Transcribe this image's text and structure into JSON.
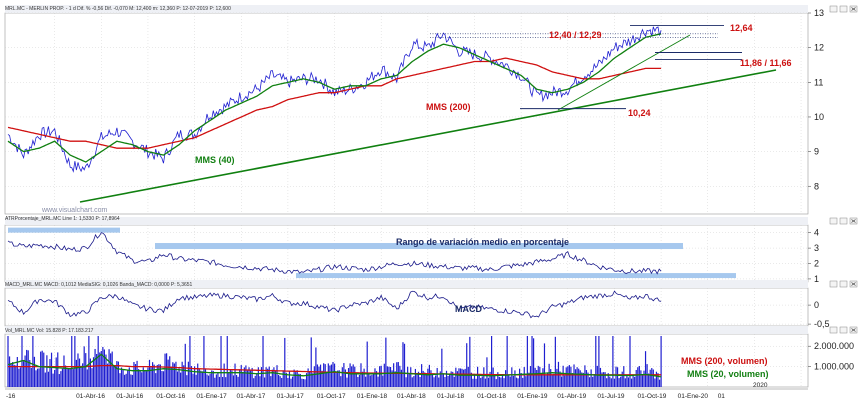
{
  "colors": {
    "price": "#1f1fd0",
    "sma200": "#d01010",
    "sma40": "#108010",
    "trendline": "#108010",
    "highlight": "#a6c8ee",
    "volume": "#1f1fd0",
    "grid": "#c8c8c8"
  },
  "chart_data": [
    {
      "type": "line",
      "title": "MRL.MC - MERLIN PROP. - 1 d Dif. % -0,56 Dif. -0,070 M: 12,400 m: 12,360 P: 12-07-2019 P: 12,600",
      "yticks": [
        "8",
        "9",
        "10",
        "11",
        "12",
        "13"
      ],
      "ylim": [
        7.2,
        13.0
      ],
      "grid": true,
      "x": [
        "2016-01",
        "2016-02",
        "2016-03",
        "2016-04",
        "2016-05",
        "2016-06",
        "2016-07",
        "2016-08",
        "2016-09",
        "2016-10",
        "2016-11",
        "2016-12",
        "2017-01",
        "2017-02",
        "2017-03",
        "2017-04",
        "2017-05",
        "2017-06",
        "2017-07",
        "2017-08",
        "2017-09",
        "2017-10",
        "2017-11",
        "2017-12",
        "2018-01",
        "2018-02",
        "2018-03",
        "2018-04",
        "2018-05",
        "2018-06",
        "2018-07",
        "2018-08",
        "2018-09",
        "2018-10",
        "2018-11",
        "2018-12",
        "2019-01",
        "2019-02",
        "2019-03",
        "2019-04",
        "2019-05",
        "2019-06",
        "2019-07"
      ],
      "series": [
        {
          "name": "price",
          "values": [
            9.5,
            8.9,
            9.5,
            9.6,
            8.6,
            8.5,
            9.4,
            9.6,
            9.3,
            9.0,
            8.8,
            9.5,
            9.5,
            10.1,
            10.3,
            10.6,
            10.8,
            11.2,
            11.0,
            11.1,
            11.1,
            10.7,
            10.8,
            11.0,
            11.4,
            11.1,
            12.1,
            12.0,
            12.4,
            11.9,
            11.8,
            11.7,
            11.5,
            11.2,
            10.6,
            10.7,
            10.8,
            11.2,
            11.5,
            12.0,
            12.2,
            12.5,
            12.5
          ]
        },
        {
          "name": "MMS (200)",
          "values": [
            9.7,
            9.6,
            9.5,
            9.4,
            9.3,
            9.3,
            9.2,
            9.1,
            9.1,
            9.1,
            9.2,
            9.3,
            9.4,
            9.6,
            9.8,
            10.0,
            10.2,
            10.3,
            10.5,
            10.6,
            10.7,
            10.7,
            10.8,
            10.9,
            10.9,
            11.1,
            11.2,
            11.3,
            11.4,
            11.5,
            11.6,
            11.6,
            11.7,
            11.6,
            11.5,
            11.3,
            11.2,
            11.1,
            11.1,
            11.2,
            11.3,
            11.4,
            11.4
          ]
        },
        {
          "name": "MMS (40)",
          "values": [
            9.3,
            9.0,
            9.1,
            9.3,
            8.9,
            8.7,
            9.0,
            9.3,
            9.2,
            9.0,
            8.9,
            9.2,
            9.6,
            9.9,
            10.2,
            10.4,
            10.6,
            10.9,
            11.0,
            11.1,
            11.0,
            10.8,
            10.9,
            10.9,
            11.1,
            11.2,
            11.6,
            11.9,
            12.1,
            12.0,
            11.8,
            11.6,
            11.4,
            11.2,
            10.8,
            10.7,
            10.8,
            11.0,
            11.3,
            11.7,
            12.0,
            12.3,
            12.4
          ]
        }
      ],
      "annotations": {
        "resistance_top": "12,64",
        "resistance_range": "12,40 / 12,29",
        "support_range": "11,86 / 11,66",
        "support_low": "10,24",
        "sma200_label": "MMS (200)",
        "sma40_label": "MMS (40)",
        "watermark": "www.visualchart.com"
      }
    },
    {
      "type": "line",
      "title": "ATRPorcentaje_MRL.MC Line 1: 1,5330 P: 17,8964",
      "yticks": [
        "1",
        "2",
        "3",
        "4"
      ],
      "ylim": [
        0.8,
        4.5
      ],
      "grid": true,
      "x": [
        "2016-01",
        "2016-02",
        "2016-03",
        "2016-04",
        "2016-05",
        "2016-06",
        "2016-07",
        "2016-08",
        "2016-09",
        "2016-10",
        "2016-11",
        "2016-12",
        "2017-01",
        "2017-02",
        "2017-03",
        "2017-04",
        "2017-05",
        "2017-06",
        "2017-07",
        "2017-08",
        "2017-09",
        "2017-10",
        "2017-11",
        "2017-12",
        "2018-01",
        "2018-02",
        "2018-03",
        "2018-04",
        "2018-05",
        "2018-06",
        "2018-07",
        "2018-08",
        "2018-09",
        "2018-10",
        "2018-11",
        "2018-12",
        "2019-01",
        "2019-02",
        "2019-03",
        "2019-04",
        "2019-05",
        "2019-06",
        "2019-07"
      ],
      "series": [
        {
          "name": "ATR %",
          "values": [
            3.3,
            3.1,
            3.2,
            3.1,
            2.9,
            3.0,
            4.1,
            2.8,
            2.2,
            2.1,
            2.6,
            2.3,
            2.2,
            2.1,
            1.9,
            1.8,
            1.7,
            1.6,
            1.5,
            1.4,
            1.6,
            1.8,
            1.7,
            1.6,
            1.8,
            2.0,
            2.0,
            1.9,
            1.8,
            1.7,
            1.7,
            1.6,
            1.8,
            1.9,
            2.1,
            2.3,
            2.6,
            2.2,
            1.8,
            1.6,
            1.5,
            1.5,
            1.5
          ]
        }
      ],
      "annotations": {
        "label": "Rango de variación medio en porcentaje"
      }
    },
    {
      "type": "line",
      "title": "MACD_MRL.MC MACD: 0,1012 MediaSIG: 0,1026 Banda_MACD: 0,0000 P: 5,3651",
      "yticks": [
        "0",
        "-0,5"
      ],
      "ylim": [
        -0.55,
        0.45
      ],
      "grid": true,
      "x": [
        "2016-01",
        "2016-02",
        "2016-03",
        "2016-04",
        "2016-05",
        "2016-06",
        "2016-07",
        "2016-08",
        "2016-09",
        "2016-10",
        "2016-11",
        "2016-12",
        "2017-01",
        "2017-02",
        "2017-03",
        "2017-04",
        "2017-05",
        "2017-06",
        "2017-07",
        "2017-08",
        "2017-09",
        "2017-10",
        "2017-11",
        "2017-12",
        "2018-01",
        "2018-02",
        "2018-03",
        "2018-04",
        "2018-05",
        "2018-06",
        "2018-07",
        "2018-08",
        "2018-09",
        "2018-10",
        "2018-11",
        "2018-12",
        "2019-01",
        "2019-02",
        "2019-03",
        "2019-04",
        "2019-05",
        "2019-06",
        "2019-07"
      ],
      "series": [
        {
          "name": "MACD",
          "values": [
            0.1,
            -0.2,
            0.15,
            0.1,
            -0.25,
            -0.2,
            0.2,
            0.25,
            0.0,
            -0.1,
            -0.15,
            0.2,
            0.2,
            0.25,
            0.25,
            0.2,
            0.15,
            0.25,
            0.05,
            0.05,
            -0.05,
            -0.15,
            0.0,
            0.05,
            0.2,
            -0.1,
            0.35,
            0.2,
            0.25,
            -0.1,
            -0.05,
            -0.1,
            -0.15,
            -0.2,
            -0.3,
            -0.05,
            0.05,
            0.2,
            0.25,
            0.3,
            0.15,
            0.25,
            0.1
          ]
        }
      ],
      "annotations": {
        "label": "MACD"
      }
    },
    {
      "type": "bar",
      "title": "Vol_MRL.MC Vol: 15.828 P: 17.183.217",
      "yticks": [
        "1.000.000",
        "2.000.000"
      ],
      "ylim": [
        0,
        2600000
      ],
      "grid": true,
      "x": [
        "2016-01",
        "2016-02",
        "2016-03",
        "2016-04",
        "2016-05",
        "2016-06",
        "2016-07",
        "2016-08",
        "2016-09",
        "2016-10",
        "2016-11",
        "2016-12",
        "2017-01",
        "2017-02",
        "2017-03",
        "2017-04",
        "2017-05",
        "2017-06",
        "2017-07",
        "2017-08",
        "2017-09",
        "2017-10",
        "2017-11",
        "2017-12",
        "2018-01",
        "2018-02",
        "2018-03",
        "2018-04",
        "2018-05",
        "2018-06",
        "2018-07",
        "2018-08",
        "2018-09",
        "2018-10",
        "2018-11",
        "2018-12",
        "2019-01",
        "2019-02",
        "2019-03",
        "2019-04",
        "2019-05",
        "2019-06",
        "2019-07"
      ],
      "series": [
        {
          "name": "volume",
          "values": [
            1500000,
            1900000,
            1400000,
            1300000,
            1200000,
            1400000,
            2500000,
            1100000,
            1000000,
            1000000,
            1300000,
            1200000,
            1000000,
            900000,
            900000,
            900000,
            850000,
            900000,
            800000,
            700000,
            900000,
            1000000,
            900000,
            900000,
            900000,
            1000000,
            900000,
            850000,
            900000,
            800000,
            800000,
            750000,
            800000,
            850000,
            900000,
            1000000,
            900000,
            850000,
            800000,
            800000,
            800000,
            900000,
            700000
          ]
        },
        {
          "name": "MMS (200, volumen)",
          "values": [
            1000000,
            1000000,
            1000000,
            1000000,
            1000000,
            1000000,
            1050000,
            1050000,
            1000000,
            1000000,
            980000,
            950000,
            900000,
            880000,
            860000,
            840000,
            820000,
            800000,
            780000,
            760000,
            740000,
            720000,
            700000,
            690000,
            680000,
            670000,
            660000,
            650000,
            640000,
            630000,
            620000,
            610000,
            600000,
            600000,
            600000,
            600000,
            600000,
            600000,
            600000,
            600000,
            600000,
            600000,
            600000
          ]
        },
        {
          "name": "MMS (20, volumen)",
          "values": [
            1100000,
            1300000,
            1000000,
            950000,
            900000,
            1000000,
            1600000,
            900000,
            800000,
            800000,
            900000,
            850000,
            750000,
            700000,
            700000,
            700000,
            650000,
            700000,
            600000,
            550000,
            650000,
            750000,
            650000,
            650000,
            650000,
            700000,
            650000,
            600000,
            650000,
            580000,
            580000,
            550000,
            580000,
            620000,
            650000,
            700000,
            650000,
            620000,
            580000,
            580000,
            560000,
            620000,
            500000
          ]
        }
      ]
    }
  ],
  "x_axis_labels": [
    "-16",
    "01-Abr-16",
    "01-Jul-16",
    "01-Oct-16",
    "01-Ene-17",
    "01-Abr-17",
    "01-Jul-17",
    "01-Oct-17",
    "01-Ene-18",
    "01-Abr-18",
    "01-Jul-18",
    "01-Oct-18",
    "01-Ene-19",
    "01-Abr-19",
    "01-Jul-19",
    "01-Oct-19",
    "01-Ene-20",
    "01"
  ],
  "x_year_marker": "2020"
}
